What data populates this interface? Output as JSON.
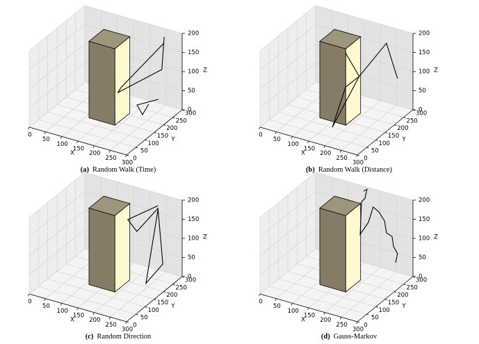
{
  "chart_data": [
    {
      "type": "line3d",
      "caption_label": "(a)",
      "caption": "Random Walk (Time)",
      "xlabel": "X",
      "ylabel": "Y",
      "zlabel": "Z",
      "xlim": [
        0,
        300
      ],
      "ylim": [
        0,
        300
      ],
      "zlim": [
        0,
        200
      ],
      "xticks": [
        0,
        50,
        100,
        150,
        200,
        250,
        300
      ],
      "yticks": [
        0,
        50,
        100,
        150,
        200,
        250,
        300
      ],
      "zticks": [
        0,
        50,
        100,
        150,
        200
      ],
      "obstacle": {
        "x": [
          110,
          190
        ],
        "y": [
          130,
          210
        ],
        "z": [
          0,
          200
        ],
        "colors": {
          "front": "#857b66",
          "top": "#9e967c",
          "side": "#fff9cf"
        }
      },
      "series": [
        {
          "color": "#000000",
          "x": [
            273,
            266,
            131,
            140,
            273,
            null,
            284,
            218,
            235,
            254
          ],
          "y": [
            250,
            250,
            250,
            250,
            250,
            null,
            200,
            200,
            200,
            200
          ],
          "z": [
            204,
            117,
            24,
            39,
            188,
            null,
            63,
            32,
            11,
            43
          ]
        }
      ]
    },
    {
      "type": "line3d",
      "caption_label": "(b)",
      "caption": "Random Walk (Distance)",
      "xlabel": "X",
      "ylabel": "Y",
      "zlabel": "Z",
      "xlim": [
        0,
        300
      ],
      "ylim": [
        0,
        300
      ],
      "zlim": [
        0,
        200
      ],
      "xticks": [
        0,
        50,
        100,
        150,
        200,
        250,
        300
      ],
      "yticks": [
        0,
        50,
        100,
        150,
        200,
        250,
        300
      ],
      "zticks": [
        0,
        50,
        100,
        150,
        200
      ],
      "obstacle": {
        "x": [
          110,
          190
        ],
        "y": [
          130,
          210
        ],
        "z": [
          0,
          200
        ],
        "colors": {
          "front": "#857b66",
          "top": "#9e967c",
          "side": "#fff9cf"
        }
      },
      "series": [
        {
          "color": "#000000",
          "x": [
            121,
            163,
            166,
            164,
            163,
            247,
            281
          ],
          "y": [
            250,
            250,
            100,
            175,
            250,
            250,
            250
          ],
          "z": [
            125,
            74,
            1,
            76,
            74,
            181,
            97
          ]
        }
      ]
    },
    {
      "type": "line3d",
      "caption_label": "(c)",
      "caption": "Random Direction",
      "xlabel": "X",
      "ylabel": "Y",
      "zlabel": "Z",
      "xlim": [
        0,
        300
      ],
      "ylim": [
        0,
        300
      ],
      "zlim": [
        0,
        200
      ],
      "xticks": [
        0,
        50,
        100,
        150,
        200,
        250,
        300
      ],
      "yticks": [
        0,
        50,
        100,
        150,
        200,
        250,
        300
      ],
      "zticks": [
        0,
        50,
        100,
        150,
        200
      ],
      "obstacle": {
        "x": [
          110,
          190
        ],
        "y": [
          130,
          210
        ],
        "z": [
          0,
          200
        ],
        "colors": {
          "front": "#857b66",
          "top": "#9e967c",
          "side": "#fff9cf"
        }
      },
      "series": [
        {
          "color": "#000000",
          "x": [
            254,
            161,
            189,
            254,
            269,
            274,
            254
          ],
          "y": [
            250,
            250,
            250,
            250,
            250,
            150,
            250
          ],
          "z": [
            194,
            135,
            111,
            187,
            45,
            35,
            183
          ]
        }
      ]
    },
    {
      "type": "line3d",
      "caption_label": "(d)",
      "caption": "Gauss-Markov",
      "xlabel": "X",
      "ylabel": "Y",
      "zlabel": "Z",
      "xlim": [
        0,
        300
      ],
      "ylim": [
        0,
        300
      ],
      "zlim": [
        0,
        200
      ],
      "xticks": [
        0,
        50,
        100,
        150,
        200,
        250,
        300
      ],
      "yticks": [
        0,
        50,
        100,
        150,
        200,
        250,
        300
      ],
      "zticks": [
        0,
        50,
        100,
        150,
        200
      ],
      "obstacle": {
        "x": [
          110,
          190
        ],
        "y": [
          130,
          210
        ],
        "z": [
          0,
          200
        ],
        "colors": {
          "front": "#857b66",
          "top": "#9e967c",
          "side": "#fff9cf"
        }
      },
      "series": [
        {
          "color": "#000000",
          "x": [
            176,
            187,
            181,
            170,
            166,
            191,
            206,
            224,
            241,
            247,
            264,
            269,
            281,
            275
          ],
          "y": [
            250,
            250,
            250,
            250,
            250,
            250,
            250,
            250,
            250,
            250,
            250,
            250,
            250,
            250
          ],
          "z": [
            213,
            221,
            196,
            184,
            98,
            135,
            179,
            170,
            151,
            121,
            116,
            90,
            75,
            50
          ]
        }
      ]
    }
  ]
}
